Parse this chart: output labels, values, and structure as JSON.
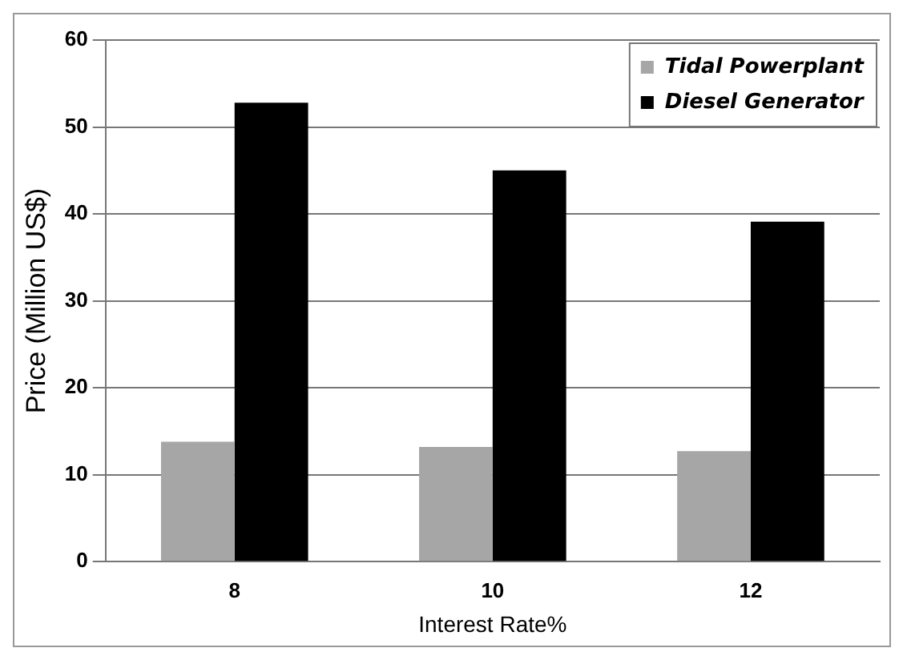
{
  "chart_data": {
    "type": "bar",
    "xlabel": "Interest Rate%",
    "ylabel": "Price (Million US$)",
    "categories": [
      "8",
      "10",
      "12"
    ],
    "series": [
      {
        "name": "Tidal Powerplant",
        "color": "#a6a6a6",
        "values": [
          13.8,
          13.2,
          12.7
        ]
      },
      {
        "name": "Diesel Generator",
        "color": "#000000",
        "values": [
          52.8,
          45.0,
          39.1
        ]
      }
    ],
    "ylim": [
      0,
      60
    ],
    "yticks": [
      0,
      10,
      20,
      30,
      40,
      50,
      60
    ],
    "grid": "y",
    "legend": "top right"
  }
}
